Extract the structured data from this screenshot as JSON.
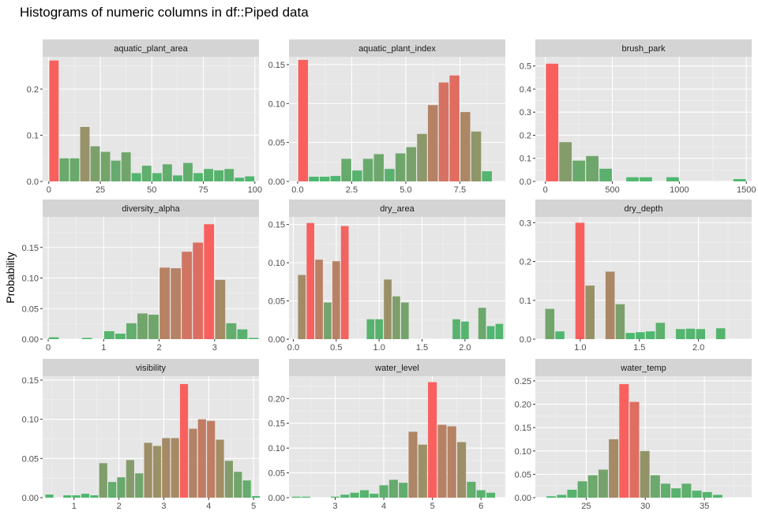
{
  "chart_data": {
    "type": "bar",
    "title": "Histograms of numeric columns in df::Piped data",
    "ylabel": "Probability",
    "xlabel": "",
    "grid": true,
    "legend": "none",
    "colors": {
      "low": "#4DB86F",
      "high": "#F8605E",
      "panel_bg": "#E6E6E6",
      "strip_bg": "#D4D4D4",
      "grid_major": "#FFFFFF"
    },
    "panels": [
      {
        "name": "aquatic_plant_area",
        "xlim": [
          -3,
          102
        ],
        "ylim": [
          0,
          0.27
        ],
        "xticks": [
          0,
          25,
          50,
          75,
          100
        ],
        "xtick_labels": [
          "0",
          "25",
          "50",
          "75",
          "100"
        ],
        "yticks": [
          0,
          0.1,
          0.2
        ],
        "ytick_labels": [
          "0.0",
          "0.1",
          "0.2"
        ],
        "bin_width": 5,
        "x_start": 0,
        "values": [
          0.262,
          0.05,
          0.05,
          0.118,
          0.076,
          0.064,
          0.045,
          0.063,
          0.018,
          0.034,
          0.018,
          0.037,
          0.013,
          0.04,
          0.018,
          0.027,
          0.024,
          0.027,
          0.008,
          0.011
        ]
      },
      {
        "name": "aquatic_plant_index",
        "xlim": [
          -0.4,
          9.6
        ],
        "ylim": [
          0,
          0.16
        ],
        "xticks": [
          0,
          2.5,
          5,
          7.5
        ],
        "xtick_labels": [
          "0.0",
          "2.5",
          "5.0",
          "7.5"
        ],
        "yticks": [
          0,
          0.05,
          0.1,
          0.15
        ],
        "ytick_labels": [
          "0.00",
          "0.05",
          "0.10",
          "0.15"
        ],
        "bin_width": 0.5,
        "x_start": 0,
        "values": [
          0.156,
          0.006,
          0.006,
          0.007,
          0.029,
          0.014,
          0.029,
          0.035,
          0.016,
          0.036,
          0.044,
          0.061,
          0.098,
          0.127,
          0.136,
          0.089,
          0.064,
          0.013
        ]
      },
      {
        "name": "brush_park",
        "xlim": [
          -75,
          1540
        ],
        "ylim": [
          0,
          0.54
        ],
        "xticks": [
          0,
          500,
          1000,
          1500
        ],
        "xtick_labels": [
          "0",
          "500",
          "1000",
          "1500"
        ],
        "yticks": [
          0,
          0.1,
          0.2,
          0.3,
          0.4,
          0.5
        ],
        "ytick_labels": [
          "0.0",
          "0.1",
          "0.2",
          "0.3",
          "0.4",
          "0.5"
        ],
        "bin_width": 100,
        "x_start": 0,
        "values": [
          0.51,
          0.17,
          0.09,
          0.11,
          0.055,
          0,
          0.018,
          0.018,
          0,
          0.018,
          0,
          0,
          0,
          0,
          0.01
        ]
      },
      {
        "name": "diversity_alpha",
        "xlim": [
          -0.1,
          3.8
        ],
        "ylim": [
          0,
          0.2
        ],
        "xticks": [
          0,
          1,
          2,
          3
        ],
        "xtick_labels": [
          "0",
          "1",
          "2",
          "3"
        ],
        "yticks": [
          0,
          0.05,
          0.1,
          0.15
        ],
        "ytick_labels": [
          "0.00",
          "0.05",
          "0.10",
          "0.15"
        ],
        "bin_width": 0.2,
        "x_start": 0,
        "values": [
          0.003,
          0,
          0,
          0.002,
          0,
          0.013,
          0.009,
          0.026,
          0.042,
          0.04,
          0.117,
          0.116,
          0.143,
          0.158,
          0.188,
          0.097,
          0.026,
          0.016,
          0.002
        ]
      },
      {
        "name": "dry_area",
        "xlim": [
          -0.05,
          2.47
        ],
        "ylim": [
          0,
          0.16
        ],
        "xticks": [
          0,
          0.5,
          1,
          1.5,
          2
        ],
        "xtick_labels": [
          "0.0",
          "0.5",
          "1.0",
          "1.5",
          "2.0"
        ],
        "yticks": [
          0,
          0.05,
          0.1,
          0.15
        ],
        "ytick_labels": [
          "0.00",
          "0.05",
          "0.10",
          "0.15"
        ],
        "bin_width": 0.1,
        "x_start": 0.05,
        "values": [
          0.084,
          0.152,
          0.104,
          0.048,
          0.102,
          0.148,
          0,
          0,
          0.026,
          0.026,
          0.078,
          0.056,
          0.048,
          0,
          0,
          0,
          0,
          0,
          0.026,
          0.023,
          0,
          0.041,
          0.017,
          0.02
        ]
      },
      {
        "name": "dry_depth",
        "xlim": [
          0.62,
          2.45
        ],
        "ylim": [
          0,
          0.315
        ],
        "xticks": [
          1,
          1.5,
          2
        ],
        "xtick_labels": [
          "1.0",
          "1.5",
          "2.0"
        ],
        "yticks": [
          0,
          0.1,
          0.2,
          0.3
        ],
        "ytick_labels": [
          "0.0",
          "0.1",
          "0.2",
          "0.3"
        ],
        "bin_width": 0.085,
        "x_start": 0.7,
        "values": [
          0.078,
          0.02,
          0,
          0.3,
          0.138,
          0,
          0.174,
          0.09,
          0.016,
          0.018,
          0.02,
          0.042,
          0,
          0.026,
          0.027,
          0.026,
          0,
          0.028
        ]
      },
      {
        "name": "visibility",
        "xlim": [
          0.3,
          5.12
        ],
        "ylim": [
          0,
          0.155
        ],
        "xticks": [
          1,
          2,
          3,
          4,
          5
        ],
        "xtick_labels": [
          "1",
          "2",
          "3",
          "4",
          "5"
        ],
        "yticks": [
          0,
          0.05,
          0.1,
          0.15
        ],
        "ytick_labels": [
          "0.00",
          "0.05",
          "0.10",
          "0.15"
        ],
        "bin_width": 0.2,
        "x_start": 0.35,
        "values": [
          0.004,
          0,
          0.003,
          0.003,
          0.005,
          0.003,
          0.044,
          0.02,
          0.026,
          0.048,
          0.031,
          0.07,
          0.066,
          0.076,
          0.076,
          0.145,
          0.088,
          0.1,
          0.098,
          0.074,
          0.047,
          0.033,
          0.022,
          0.002
        ]
      },
      {
        "name": "water_level",
        "xlim": [
          2.05,
          6.5
        ],
        "ylim": [
          0,
          0.245
        ],
        "xticks": [
          3,
          4,
          5,
          6
        ],
        "xtick_labels": [
          "3",
          "4",
          "5",
          "6"
        ],
        "yticks": [
          0,
          0.05,
          0.1,
          0.15,
          0.2
        ],
        "ytick_labels": [
          "0.00",
          "0.05",
          "0.10",
          "0.15",
          "0.20"
        ],
        "bin_width": 0.2,
        "x_start": 2.1,
        "values": [
          0.002,
          0.002,
          0,
          0,
          0.002,
          0.006,
          0.01,
          0.015,
          0.008,
          0.025,
          0.036,
          0.03,
          0.133,
          0.107,
          0.233,
          0.147,
          0.144,
          0.112,
          0.032,
          0.015,
          0.01
        ]
      },
      {
        "name": "water_temp",
        "xlim": [
          20.7,
          39.0
        ],
        "ylim": [
          0,
          0.26
        ],
        "xticks": [
          25,
          30,
          35
        ],
        "xtick_labels": [
          "25",
          "30",
          "35"
        ],
        "yticks": [
          0,
          0.05,
          0.1,
          0.15,
          0.2,
          0.25
        ],
        "ytick_labels": [
          "0.00",
          "0.05",
          "0.10",
          "0.15",
          "0.20",
          "0.25"
        ],
        "bin_width": 0.88,
        "x_start": 21.6,
        "values": [
          0.003,
          0.006,
          0.017,
          0.035,
          0.048,
          0.06,
          0.125,
          0.243,
          0.205,
          0.1,
          0.048,
          0.03,
          0.02,
          0.03,
          0.015,
          0.012,
          0.006
        ]
      }
    ]
  }
}
